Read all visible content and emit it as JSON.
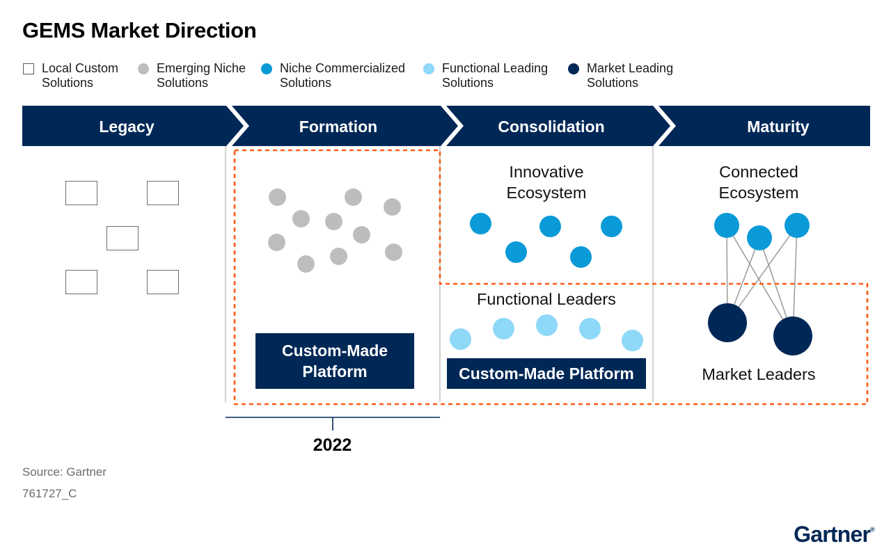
{
  "title": "GEMS Market Direction",
  "legend": [
    {
      "label": "Local Custom\nSolutions",
      "marker": "square"
    },
    {
      "label": "Emerging Niche\nSolutions",
      "marker": "circle",
      "color": "#bdbdbd"
    },
    {
      "label": "Niche Commercialized\nSolutions",
      "marker": "circle",
      "color": "#0a9ad7"
    },
    {
      "label": "Functional Leading\nSolutions",
      "marker": "circle",
      "color": "#8ed8f8"
    },
    {
      "label": "Market Leading\nSolutions",
      "marker": "circle",
      "color": "#002856"
    }
  ],
  "stages": [
    "Legacy",
    "Formation",
    "Consolidation",
    "Maturity"
  ],
  "formation": {
    "box_label": "Custom-Made\nPlatform"
  },
  "consolidation": {
    "innovative_heading": "Innovative\nEcosystem",
    "functional_heading": "Functional Leaders",
    "box_label": "Custom-Made Platform"
  },
  "maturity": {
    "connected_heading": "Connected\nEcosystem",
    "leaders_heading": "Market Leaders"
  },
  "year": "2022",
  "source": "Source: Gartner",
  "doc_id": "761727_C",
  "logo": {
    "text": "Gartner",
    "mark": "®"
  },
  "colors": {
    "navy": "#002856",
    "emerging": "#bdbdbd",
    "niche": "#0a9ad7",
    "functional": "#8ed8f8",
    "highlight": "#ff5a14"
  }
}
